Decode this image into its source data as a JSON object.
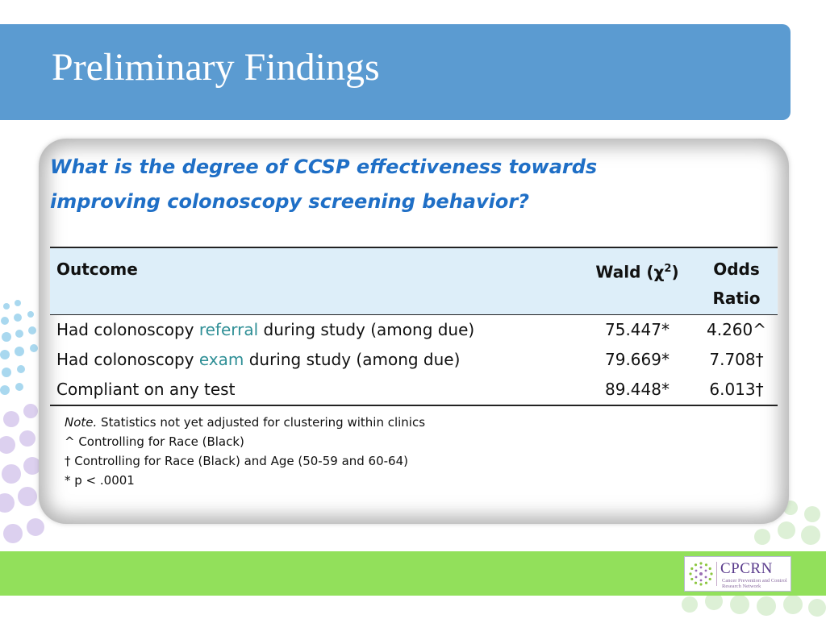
{
  "slide": {
    "title": "Preliminary Findings",
    "question": "What is the degree of CCSP effectiveness towards improving colonoscopy screening behavior?"
  },
  "table": {
    "headers": {
      "outcome": "Outcome",
      "wald_prefix": "Wald (",
      "wald_chi": "χ",
      "wald_sup": "2",
      "wald_suffix": ")",
      "odds": "Odds",
      "ratio": "Ratio"
    },
    "rows": [
      {
        "pre": "Had colonoscopy ",
        "highlight": "referral",
        "post": " during study (among due)",
        "wald": "75.447*",
        "odds_ratio": "4.260^"
      },
      {
        "pre": "Had colonoscopy ",
        "highlight": "exam",
        "post": " during study (among due)",
        "wald": "79.669*",
        "odds_ratio": "7.708†"
      },
      {
        "pre": "Compliant on any test",
        "highlight": "",
        "post": "",
        "wald": "89.448*",
        "odds_ratio": "6.013†"
      }
    ]
  },
  "notes": {
    "note_label": "Note.",
    "note_text": " Statistics not yet adjusted for clustering within clinics",
    "line2": "^ Controlling for Race (Black)",
    "line3": "† Controlling for Race (Black) and Age (50-59 and 60-64)",
    "line4": "* p < .0001"
  },
  "logo": {
    "name": "CPCRN",
    "subtitle": "Cancer Prevention and Control Research Network"
  },
  "colors": {
    "title_bar": "#5b9bd1",
    "question_text": "#1f6fc6",
    "table_header_bg": "#ddeef9",
    "highlight_text": "#2f8f96",
    "green_band": "#92e05b"
  }
}
